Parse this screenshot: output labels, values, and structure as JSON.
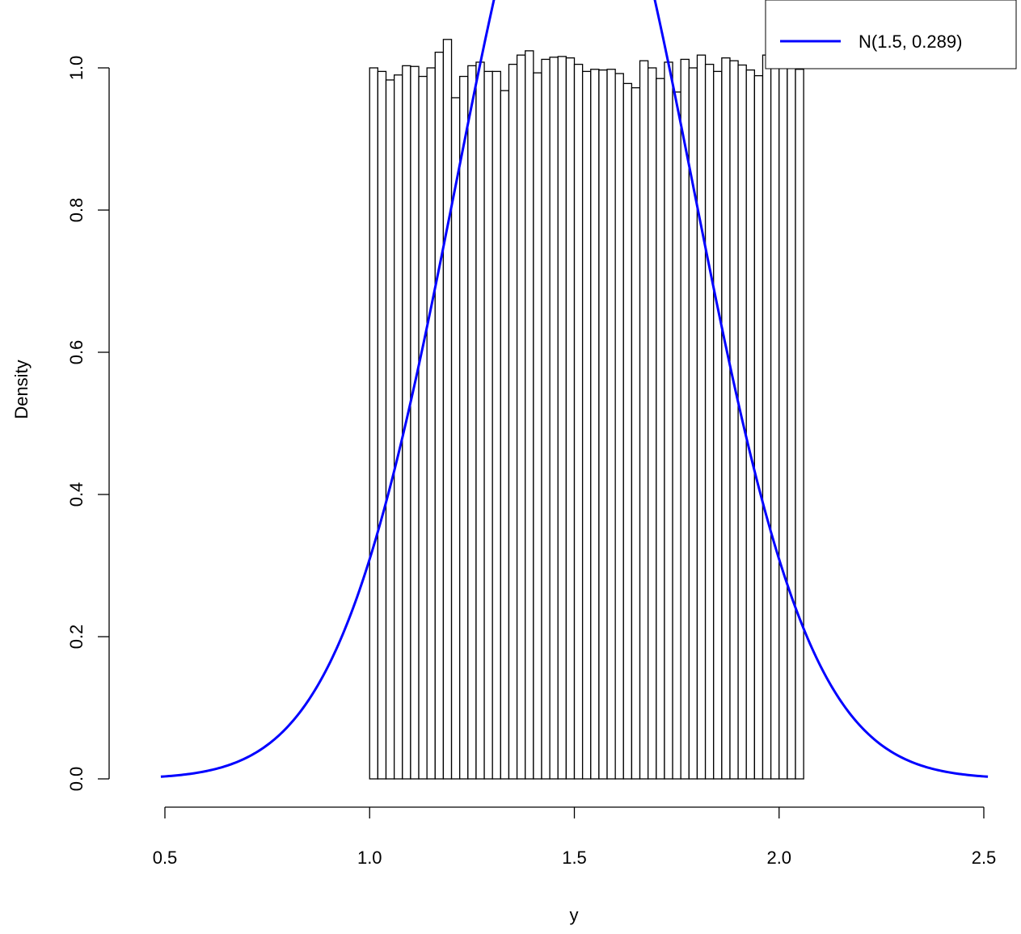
{
  "chart_data": {
    "type": "bar",
    "title": "",
    "xlabel": "y",
    "ylabel": "Density",
    "xlim": [
      0.5,
      2.5
    ],
    "ylim": [
      0.0,
      1.0
    ],
    "x_ticks": [
      "0.5",
      "1.0",
      "1.5",
      "2.0",
      "2.5"
    ],
    "y_ticks": [
      "0.0",
      "0.2",
      "0.4",
      "0.6",
      "0.8",
      "1.0"
    ],
    "histogram": {
      "bin_start": 1.0,
      "bin_width": 0.02,
      "values": [
        1.0,
        0.995,
        0.983,
        0.99,
        1.003,
        1.002,
        0.988,
        1.0,
        1.022,
        1.04,
        0.958,
        0.988,
        1.003,
        1.008,
        0.995,
        0.995,
        0.968,
        1.005,
        1.018,
        1.024,
        0.993,
        1.012,
        1.015,
        1.016,
        1.014,
        1.005,
        0.995,
        0.998,
        0.997,
        0.998,
        0.992,
        0.978,
        0.972,
        1.01,
        1.0,
        0.985,
        1.008,
        0.966,
        1.012,
        1.0,
        1.018,
        1.005,
        0.995,
        1.014,
        1.01,
        1.004,
        0.997,
        0.989,
        1.018,
        1.003,
        1.008,
        1.018,
        0.998
      ]
    },
    "series": [
      {
        "name": "N(1.5, 0.289)",
        "type": "normal-density",
        "mean": 1.5,
        "sd": 0.289,
        "x_range": [
          0.49,
          2.51
        ],
        "color": "#0000ff"
      }
    ],
    "legend": {
      "position": "top-right",
      "entries": [
        "N(1.5, 0.289)"
      ]
    },
    "grid": false
  }
}
